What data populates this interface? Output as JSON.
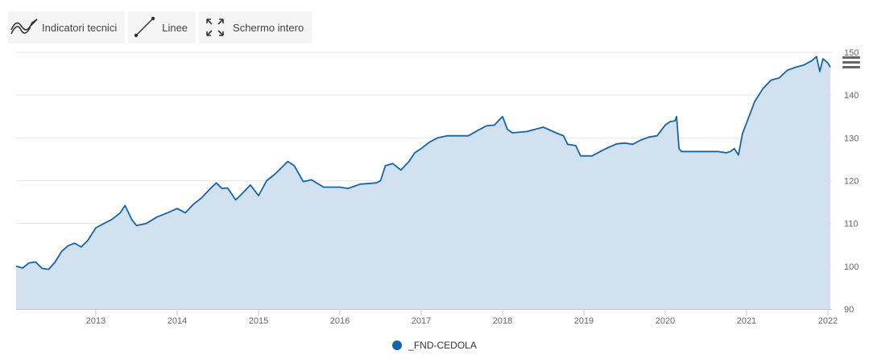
{
  "toolbar": {
    "indicators_label": "Indicatori tecnici",
    "lines_label": "Linee",
    "fullscreen_label": "Schermo intero"
  },
  "icons": {
    "indicators": "line-chart-icon",
    "lines": "draw-line-icon",
    "fullscreen": "expand-icon",
    "menu": "hamburger-menu-icon"
  },
  "colors": {
    "line": "#1565a8",
    "area": "#d2e1ef",
    "grid": "#e6e6e6",
    "axis": "#c6c6c6",
    "text": "#666666"
  },
  "legend": {
    "label": "_FND-CEDOLA",
    "color": "#1565a8"
  },
  "chart_data": {
    "type": "area",
    "title": "",
    "xlabel": "",
    "ylabel": "",
    "xlim": [
      2012.02,
      2022.05
    ],
    "ylim": [
      90,
      150
    ],
    "x_ticks": [
      "2013",
      "2014",
      "2015",
      "2016",
      "2017",
      "2018",
      "2019",
      "2020",
      "2021",
      "2022"
    ],
    "y_ticks": [
      "90",
      "100",
      "110",
      "120",
      "130",
      "140",
      "150"
    ],
    "y_axis_position": "right",
    "grid": true,
    "legend_position": "bottom-center",
    "series": [
      {
        "name": "_FND-CEDOLA",
        "x": [
          2012.02,
          2012.1,
          2012.18,
          2012.26,
          2012.34,
          2012.42,
          2012.5,
          2012.58,
          2012.66,
          2012.74,
          2012.82,
          2012.9,
          2013.0,
          2013.1,
          2013.2,
          2013.3,
          2013.36,
          2013.44,
          2013.5,
          2013.62,
          2013.75,
          2013.88,
          2014.0,
          2014.1,
          2014.2,
          2014.3,
          2014.4,
          2014.48,
          2014.55,
          2014.62,
          2014.72,
          2014.8,
          2014.9,
          2015.0,
          2015.1,
          2015.2,
          2015.28,
          2015.36,
          2015.44,
          2015.55,
          2015.65,
          2015.8,
          2016.0,
          2016.1,
          2016.25,
          2016.45,
          2016.5,
          2016.56,
          2016.65,
          2016.75,
          2016.85,
          2016.92,
          2017.0,
          2017.1,
          2017.2,
          2017.32,
          2017.45,
          2017.58,
          2017.7,
          2017.8,
          2017.9,
          2018.0,
          2018.06,
          2018.12,
          2018.3,
          2018.5,
          2018.68,
          2018.75,
          2018.8,
          2018.9,
          2018.96,
          2019.1,
          2019.25,
          2019.4,
          2019.5,
          2019.6,
          2019.7,
          2019.8,
          2019.9,
          2020.0,
          2020.06,
          2020.12,
          2020.14,
          2020.17,
          2020.2,
          2020.3,
          2020.5,
          2020.65,
          2020.75,
          2020.8,
          2020.85,
          2020.9,
          2020.95,
          2021.0,
          2021.05,
          2021.1,
          2021.2,
          2021.3,
          2021.4,
          2021.5,
          2021.6,
          2021.7,
          2021.8,
          2021.86,
          2021.9,
          2021.94,
          2022.0,
          2022.03
        ],
        "y": [
          100,
          99.6,
          100.8,
          101,
          99.5,
          99.3,
          101,
          103.5,
          104.8,
          105.4,
          104.5,
          106,
          109,
          110,
          111,
          112.5,
          114.2,
          111,
          109.5,
          110,
          111.5,
          112.5,
          113.5,
          112.5,
          114.5,
          116,
          118,
          119.5,
          118.2,
          118.3,
          115.5,
          117,
          119,
          116.5,
          120,
          121.5,
          123,
          124.5,
          123.5,
          119.8,
          120.2,
          118.5,
          118.5,
          118.2,
          119.2,
          119.5,
          120,
          123.5,
          124,
          122.5,
          124.5,
          126.5,
          127.5,
          129,
          130,
          130.5,
          130.5,
          130.5,
          131.8,
          132.8,
          133,
          135,
          132,
          131.2,
          131.5,
          132.5,
          131,
          130.5,
          128.5,
          128.2,
          125.8,
          125.8,
          127.3,
          128.6,
          128.8,
          128.5,
          129.5,
          130.2,
          130.5,
          133,
          133.8,
          134,
          135,
          127.5,
          126.8,
          126.8,
          126.8,
          126.8,
          126.5,
          126.8,
          127.5,
          126,
          131,
          133.5,
          136,
          138.5,
          141.5,
          143.5,
          144,
          145.8,
          146.5,
          147,
          148,
          149,
          145.5,
          148.5,
          147.5,
          146.5
        ]
      }
    ]
  }
}
